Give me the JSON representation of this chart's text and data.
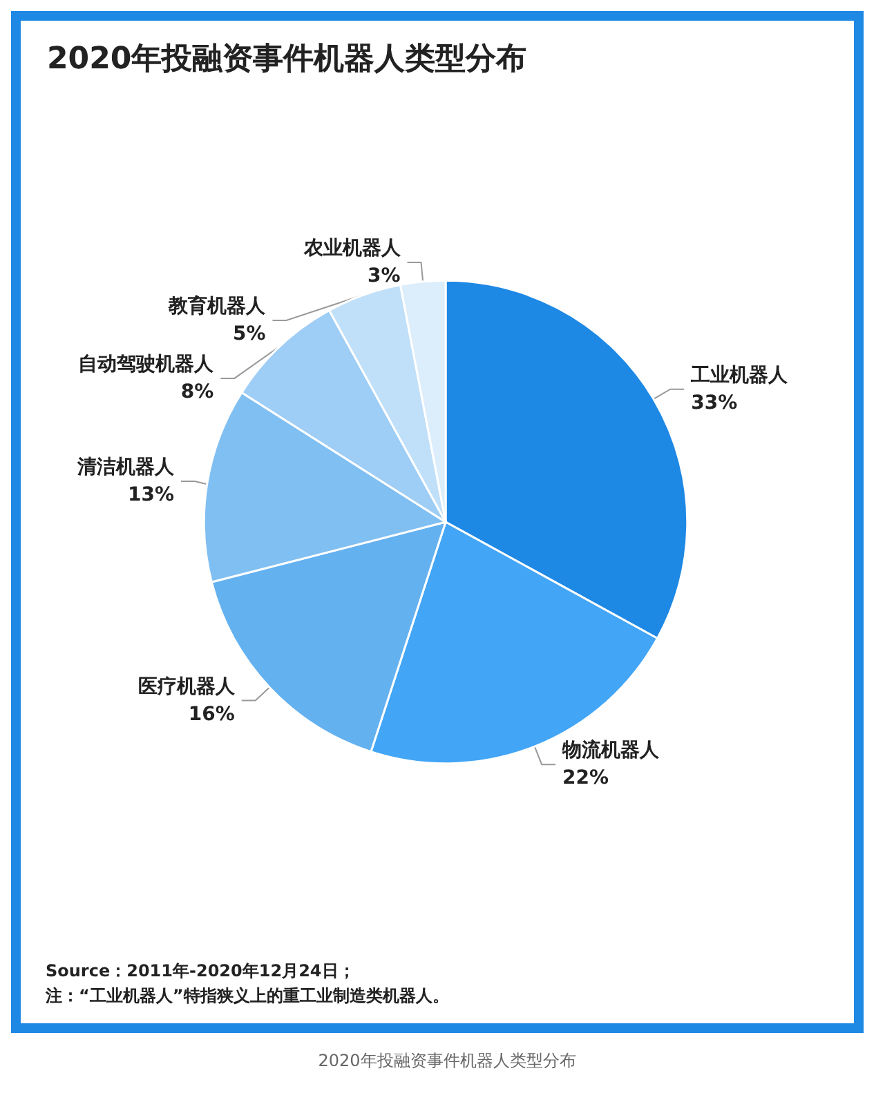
{
  "chart_data": {
    "type": "pie",
    "title": "2020年投融资事件机器人类型分布",
    "categories": [
      "工业机器人",
      "物流机器人",
      "医疗机器人",
      "清洁机器人",
      "自动驾驶机器人",
      "教育机器人",
      "农业机器人"
    ],
    "values": [
      33,
      22,
      16,
      13,
      8,
      5,
      3
    ],
    "value_labels": [
      "33%",
      "22%",
      "16%",
      "13%",
      "8%",
      "5%",
      "3%"
    ],
    "colors": [
      "#1e88e5",
      "#42a5f5",
      "#64b1f0",
      "#80bff2",
      "#9ecdf5",
      "#c0dff8",
      "#dcedfb"
    ],
    "legend": false,
    "annotations": [
      "Source：2011年-2020年12月24日；",
      "注：“工业机器人”特指狭义上的重工业制造类机器人。",
      "2020年投融资事件机器人类型分布"
    ]
  }
}
